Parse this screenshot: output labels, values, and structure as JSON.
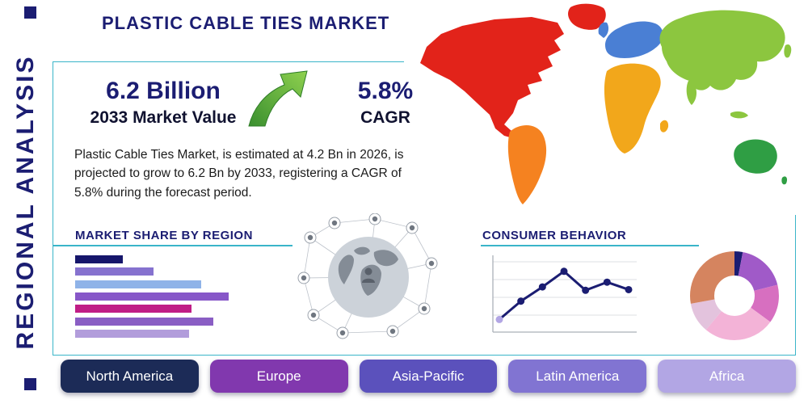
{
  "page": {
    "title": "PLASTIC CABLE TIES MARKET",
    "side_label": "REGIONAL ANALYSIS"
  },
  "stats": {
    "market_value": "6.2 Billion",
    "market_value_label": "2033 Market Value",
    "cagr": "5.8%",
    "cagr_label": "CAGR"
  },
  "description": "Plastic Cable Ties Market, is estimated at 4.2 Bn in 2026, is projected to grow to 6.2 Bn by 2033, registering a CAGR of 5.8% during the forecast period.",
  "sections": {
    "market_share_title": "MARKET SHARE BY REGION",
    "consumer_behavior_title": "CONSUMER BEHAVIOR"
  },
  "regions": [
    {
      "label": "North America",
      "color": "#1c2b57"
    },
    {
      "label": "Europe",
      "color": "#8138ae"
    },
    {
      "label": "Asia-Pacific",
      "color": "#5b51bc"
    },
    {
      "label": "Latin America",
      "color": "#8174d2"
    },
    {
      "label": "Africa",
      "color": "#b2a6e4"
    }
  ],
  "map": {
    "region_colors": {
      "north_america": "#e2231a",
      "greenland": "#e2231a",
      "south_america": "#f58220",
      "europe": "#4a7fd4",
      "africa": "#f2a71b",
      "asia": "#8cc63f",
      "australia": "#2f9e44"
    }
  },
  "icons": {
    "growth_arrow": "green-up-right-arrow",
    "globe_network": "connected-globe-network"
  },
  "chart_data": [
    {
      "type": "bar",
      "title": "MARKET SHARE BY REGION",
      "orientation": "horizontal",
      "values": [
        31,
        51,
        82,
        100,
        76,
        90,
        74
      ],
      "colors": [
        "#16166b",
        "#8672cf",
        "#8fb3e8",
        "#8757c8",
        "#c01d86",
        "#8a5ec4",
        "#b29ddb"
      ],
      "xlim": [
        0,
        100
      ]
    },
    {
      "type": "line",
      "title": "CONSUMER BEHAVIOR",
      "values": [
        1.5,
        4.2,
        6.3,
        8.6,
        5.8,
        7.0,
        5.9
      ],
      "ylim": [
        0,
        10
      ],
      "line_color": "#1b1d72",
      "first_point_color": "#b2a6e4",
      "grid": true
    },
    {
      "type": "donut",
      "title": "",
      "segments": [
        {
          "color": "#1b1d72",
          "value": 3
        },
        {
          "color": "#a05ac8",
          "value": 18
        },
        {
          "color": "#d76fc0",
          "value": 14
        },
        {
          "color": "#f3b3d7",
          "value": 26
        },
        {
          "color": "#e3c3dd",
          "value": 11
        },
        {
          "color": "#d5845f",
          "value": 28
        }
      ]
    }
  ]
}
